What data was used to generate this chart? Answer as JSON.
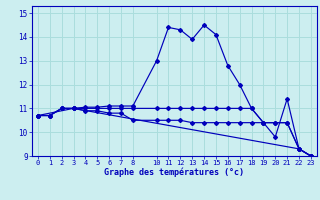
{
  "bg_color": "#cceef0",
  "line_color": "#0000bb",
  "grid_color": "#aadddd",
  "xlabel": "Graphe des températures (°c)",
  "xlim": [
    -0.5,
    23.5
  ],
  "ylim": [
    9,
    15.3
  ],
  "yticks": [
    9,
    10,
    11,
    12,
    13,
    14,
    15
  ],
  "xticks": [
    0,
    1,
    2,
    3,
    4,
    5,
    6,
    7,
    8,
    10,
    11,
    12,
    13,
    14,
    15,
    16,
    17,
    18,
    19,
    20,
    21,
    22,
    23
  ],
  "line1_x": [
    0,
    1,
    2,
    3,
    4,
    5,
    6,
    7,
    8,
    10,
    11,
    12,
    13,
    14,
    15,
    16,
    17,
    18,
    19,
    20,
    21,
    22,
    23
  ],
  "line1_y": [
    10.7,
    10.7,
    11.0,
    11.0,
    11.05,
    11.05,
    11.1,
    11.1,
    11.1,
    13.0,
    14.4,
    14.3,
    13.9,
    14.5,
    14.1,
    12.8,
    12.0,
    11.0,
    10.4,
    9.8,
    11.4,
    9.3,
    9.0
  ],
  "line2_x": [
    0,
    1,
    2,
    3,
    4,
    5,
    6,
    7,
    8,
    10,
    11,
    12,
    13,
    14,
    15,
    16,
    17,
    18,
    19,
    20,
    21,
    22,
    23
  ],
  "line2_y": [
    10.7,
    10.7,
    11.0,
    11.0,
    11.0,
    11.0,
    11.0,
    11.0,
    11.0,
    11.0,
    11.0,
    11.0,
    11.0,
    11.0,
    11.0,
    11.0,
    11.0,
    11.0,
    10.4,
    10.4,
    10.4,
    9.3,
    9.0
  ],
  "line3_x": [
    0,
    1,
    2,
    3,
    4,
    5,
    6,
    7,
    8,
    10,
    11,
    12,
    13,
    14,
    15,
    16,
    17,
    18,
    19,
    20,
    21,
    22,
    23
  ],
  "line3_y": [
    10.7,
    10.7,
    11.0,
    11.0,
    10.9,
    10.9,
    10.8,
    10.8,
    10.5,
    10.5,
    10.5,
    10.5,
    10.4,
    10.4,
    10.4,
    10.4,
    10.4,
    10.4,
    10.4,
    10.4,
    10.4,
    9.3,
    9.0
  ],
  "line4_x": [
    0,
    3,
    22,
    23
  ],
  "line4_y": [
    10.7,
    11.0,
    9.3,
    9.0
  ]
}
